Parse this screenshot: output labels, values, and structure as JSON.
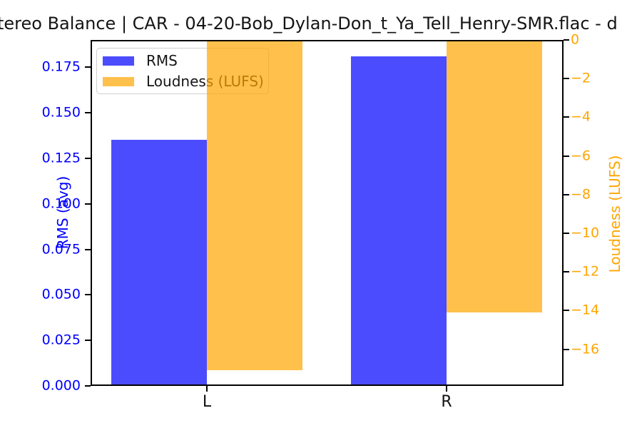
{
  "title": "tereo Balance | CAR - 04-20-Bob_Dylan-Don_t_Ya_Tell_Henry-SMR.flac - d",
  "legend": {
    "items": [
      {
        "label": "RMS",
        "color": "#0000ff"
      },
      {
        "label": "Loudness (LUFS)",
        "color": "#ffa500"
      }
    ]
  },
  "colors": {
    "rms_bar": "#0000ff",
    "loudness_bar": "#ffa500",
    "bar_alpha": 0.7,
    "left_tick_text": "#0000ff",
    "right_tick_text": "#ffa500"
  },
  "chart_data": {
    "type": "bar",
    "categories": [
      "L",
      "R"
    ],
    "series": [
      {
        "name": "RMS",
        "axis": "left",
        "color": "#0000ff",
        "alpha": 0.7,
        "values": [
          0.135,
          0.181
        ]
      },
      {
        "name": "Loudness (LUFS)",
        "axis": "right",
        "color": "#ffa500",
        "alpha": 0.7,
        "values": [
          -17.1,
          -14.1
        ]
      }
    ],
    "left_axis": {
      "label": "RMS (avg)",
      "tick_labels": [
        "0.000",
        "0.025",
        "0.050",
        "0.075",
        "0.100",
        "0.125",
        "0.150",
        "0.175"
      ],
      "tick_values": [
        0,
        0.025,
        0.05,
        0.075,
        0.1,
        0.125,
        0.15,
        0.175
      ],
      "lim": [
        0,
        0.19
      ]
    },
    "right_axis": {
      "label": "Loudness (LUFS)",
      "tick_labels": [
        "0",
        "−2",
        "−4",
        "−6",
        "−8",
        "−10",
        "−12",
        "−14",
        "−16"
      ],
      "tick_values": [
        0,
        -2,
        -4,
        -6,
        -8,
        -10,
        -12,
        -14,
        -16
      ],
      "lim": [
        -17.9,
        0
      ]
    },
    "grid": false,
    "legend_position": "upper left",
    "title": "tereo Balance | CAR - 04-20-Bob_Dylan-Don_t_Ya_Tell_Henry-SMR.flac - d"
  }
}
